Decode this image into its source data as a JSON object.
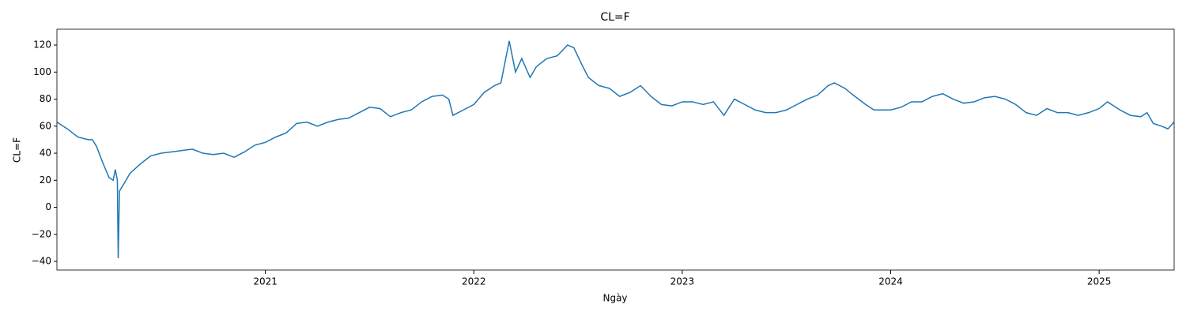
{
  "chart_data": {
    "type": "line",
    "title": "CL=F",
    "xlabel": "Ngày",
    "ylabel": "CL=F",
    "x": [
      2020.0,
      2020.05,
      2020.1,
      2020.15,
      2020.17,
      2020.19,
      2020.22,
      2020.25,
      2020.27,
      2020.28,
      2020.29,
      2020.294,
      2020.3,
      2020.32,
      2020.35,
      2020.4,
      2020.45,
      2020.5,
      2020.55,
      2020.6,
      2020.65,
      2020.7,
      2020.75,
      2020.8,
      2020.85,
      2020.9,
      2020.95,
      2021.0,
      2021.05,
      2021.1,
      2021.15,
      2021.2,
      2021.25,
      2021.3,
      2021.35,
      2021.4,
      2021.45,
      2021.5,
      2021.55,
      2021.6,
      2021.65,
      2021.7,
      2021.75,
      2021.8,
      2021.85,
      2021.88,
      2021.9,
      2021.95,
      2022.0,
      2022.05,
      2022.1,
      2022.13,
      2022.17,
      2022.2,
      2022.23,
      2022.27,
      2022.3,
      2022.35,
      2022.4,
      2022.45,
      2022.48,
      2022.52,
      2022.55,
      2022.6,
      2022.65,
      2022.7,
      2022.75,
      2022.8,
      2022.85,
      2022.9,
      2022.95,
      2023.0,
      2023.05,
      2023.1,
      2023.15,
      2023.2,
      2023.25,
      2023.3,
      2023.35,
      2023.4,
      2023.45,
      2023.5,
      2023.55,
      2023.6,
      2023.65,
      2023.7,
      2023.73,
      2023.78,
      2023.82,
      2023.88,
      2023.92,
      2023.96,
      2024.0,
      2024.05,
      2024.1,
      2024.15,
      2024.2,
      2024.25,
      2024.3,
      2024.35,
      2024.4,
      2024.45,
      2024.5,
      2024.55,
      2024.6,
      2024.65,
      2024.7,
      2024.75,
      2024.8,
      2024.85,
      2024.9,
      2024.95,
      2025.0,
      2025.04,
      2025.1,
      2025.15,
      2025.2,
      2025.23,
      2025.26,
      2025.3,
      2025.33,
      2025.36
    ],
    "series": [
      {
        "name": "CL=F",
        "color": "#1f77b4",
        "values": [
          63,
          58,
          52,
          50,
          50,
          45,
          33,
          22,
          20,
          28,
          20,
          -37.6,
          12,
          17,
          25,
          32,
          38,
          40,
          41,
          42,
          43,
          40,
          39,
          40,
          37,
          41,
          46,
          48,
          52,
          55,
          62,
          63,
          60,
          63,
          65,
          66,
          70,
          74,
          73,
          67,
          70,
          72,
          78,
          82,
          83,
          80,
          68,
          72,
          76,
          85,
          90,
          92,
          123,
          100,
          110,
          96,
          104,
          110,
          112,
          120,
          118,
          105,
          96,
          90,
          88,
          82,
          85,
          90,
          82,
          76,
          75,
          78,
          78,
          76,
          78,
          68,
          80,
          76,
          72,
          70,
          70,
          72,
          76,
          80,
          83,
          90,
          92,
          88,
          83,
          76,
          72,
          72,
          72,
          74,
          78,
          78,
          82,
          84,
          80,
          77,
          78,
          81,
          82,
          80,
          76,
          70,
          68,
          73,
          70,
          70,
          68,
          70,
          73,
          78,
          72,
          68,
          67,
          70,
          62,
          60,
          58,
          63
        ]
      }
    ],
    "xlim": [
      2020.0,
      2025.36
    ],
    "xticks": [
      2021,
      2022,
      2023,
      2024,
      2025
    ],
    "ylim": [
      -46.4,
      131.7
    ],
    "yticks": [
      {
        "value": -40,
        "label": "−40"
      },
      {
        "value": -20,
        "label": "−20"
      },
      0,
      20,
      40,
      60,
      80,
      100,
      120
    ]
  }
}
